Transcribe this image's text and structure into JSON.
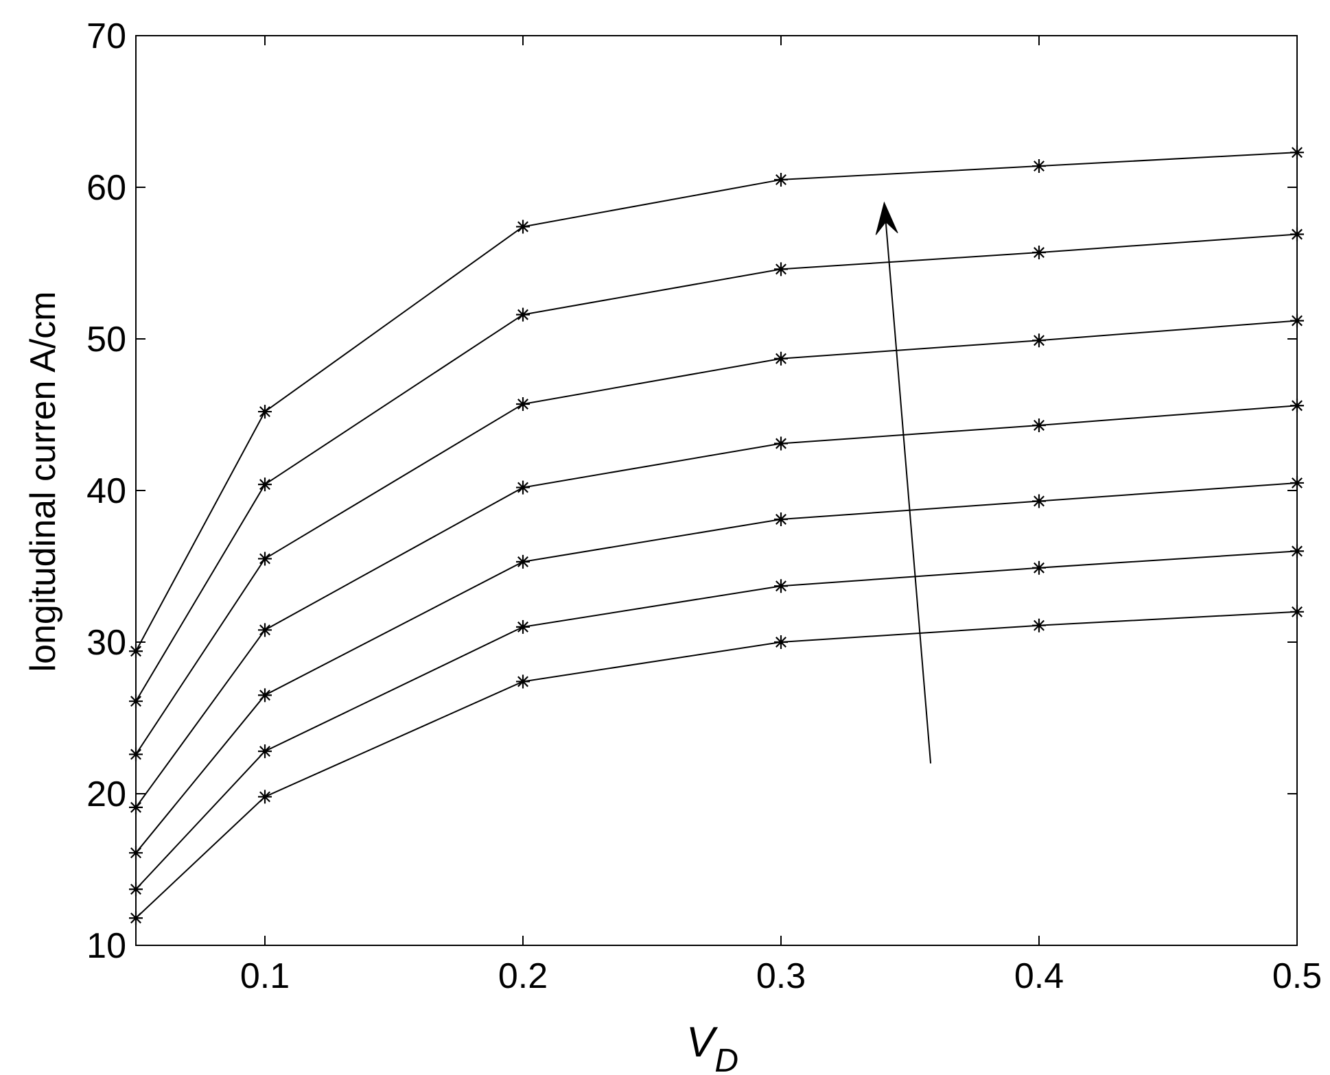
{
  "chart_data": {
    "type": "line",
    "title": "",
    "xlabel": "V",
    "xlabel_subscript": "D",
    "ylabel": "longitudinal curren A/cm",
    "xlim": [
      0.05,
      0.5
    ],
    "ylim": [
      10,
      70
    ],
    "xticks": [
      "0.1",
      "0.2",
      "0.3",
      "0.4",
      "0.5"
    ],
    "yticks": [
      "10",
      "20",
      "30",
      "40",
      "50",
      "60",
      "70"
    ],
    "grid": false,
    "legend": "none",
    "marker": "asterisk",
    "line_color": "#000000",
    "x": [
      0.05,
      0.1,
      0.2,
      0.3,
      0.4,
      0.5
    ],
    "series": [
      {
        "values": [
          11.8,
          19.8,
          27.4,
          30.0,
          31.1,
          32.0
        ]
      },
      {
        "values": [
          13.7,
          22.8,
          31.0,
          33.7,
          34.9,
          36.0
        ]
      },
      {
        "values": [
          16.1,
          26.5,
          35.3,
          38.1,
          39.3,
          40.5
        ]
      },
      {
        "values": [
          19.1,
          30.8,
          40.2,
          43.1,
          44.3,
          45.6
        ]
      },
      {
        "values": [
          22.6,
          35.5,
          45.7,
          48.7,
          49.9,
          51.2
        ]
      },
      {
        "values": [
          26.1,
          40.4,
          51.6,
          54.6,
          55.7,
          56.9
        ]
      },
      {
        "values": [
          29.4,
          45.2,
          57.4,
          60.5,
          61.4,
          62.3
        ]
      }
    ],
    "annotation": {
      "type": "arrow",
      "from": [
        0.358,
        22.0
      ],
      "to": [
        0.34,
        59.0
      ]
    }
  }
}
